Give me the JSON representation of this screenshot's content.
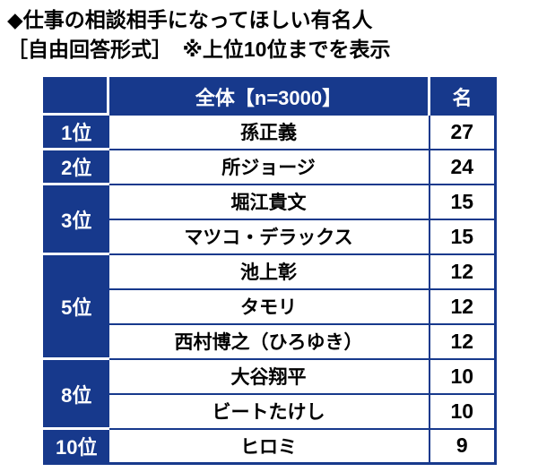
{
  "title": {
    "line1": "◆仕事の相談相手になってほしい有名人",
    "line2": "［自由回答形式］　※上位10位までを表示"
  },
  "table": {
    "header": {
      "rank": "",
      "group": "全体【n=3000】",
      "unit": "名"
    },
    "rows": [
      {
        "rank": "1位",
        "name": "孫正義",
        "count": "27"
      },
      {
        "rank": "2位",
        "name": "所ジョージ",
        "count": "24"
      },
      {
        "rank": "3位",
        "name": "堀江貴文",
        "count": "15"
      },
      {
        "rank": "",
        "name": "マツコ・デラックス",
        "count": "15"
      },
      {
        "rank": "5位",
        "name": "池上彰",
        "count": "12"
      },
      {
        "rank": "",
        "name": "タモリ",
        "count": "12"
      },
      {
        "rank": "",
        "name": "西村博之（ひろゆき）",
        "count": "12"
      },
      {
        "rank": "8位",
        "name": "大谷翔平",
        "count": "10"
      },
      {
        "rank": "",
        "name": "ビートたけし",
        "count": "10"
      },
      {
        "rank": "10位",
        "name": "ヒロミ",
        "count": "9"
      }
    ]
  },
  "colors": {
    "table_blue": "#17398C",
    "cell_white": "#FFFFFF",
    "text_black": "#000000",
    "header_text_white": "#FFFFFF"
  },
  "chart_data": {
    "type": "table",
    "title": "仕事の相談相手になってほしい有名人（自由回答形式・上位10位までを表示）",
    "columns": [
      "",
      "全体【n=3000】",
      "名"
    ],
    "rows": [
      [
        "1位",
        "孫正義",
        27
      ],
      [
        "2位",
        "所ジョージ",
        24
      ],
      [
        "3位",
        "堀江貴文",
        15
      ],
      [
        "3位",
        "マツコ・デラックス",
        15
      ],
      [
        "5位",
        "池上彰",
        12
      ],
      [
        "5位",
        "タモリ",
        12
      ],
      [
        "5位",
        "西村博之（ひろゆき）",
        12
      ],
      [
        "8位",
        "大谷翔平",
        10
      ],
      [
        "8位",
        "ビートたけし",
        10
      ],
      [
        "10位",
        "ヒロミ",
        9
      ]
    ],
    "n": 3000,
    "unit": "名"
  }
}
